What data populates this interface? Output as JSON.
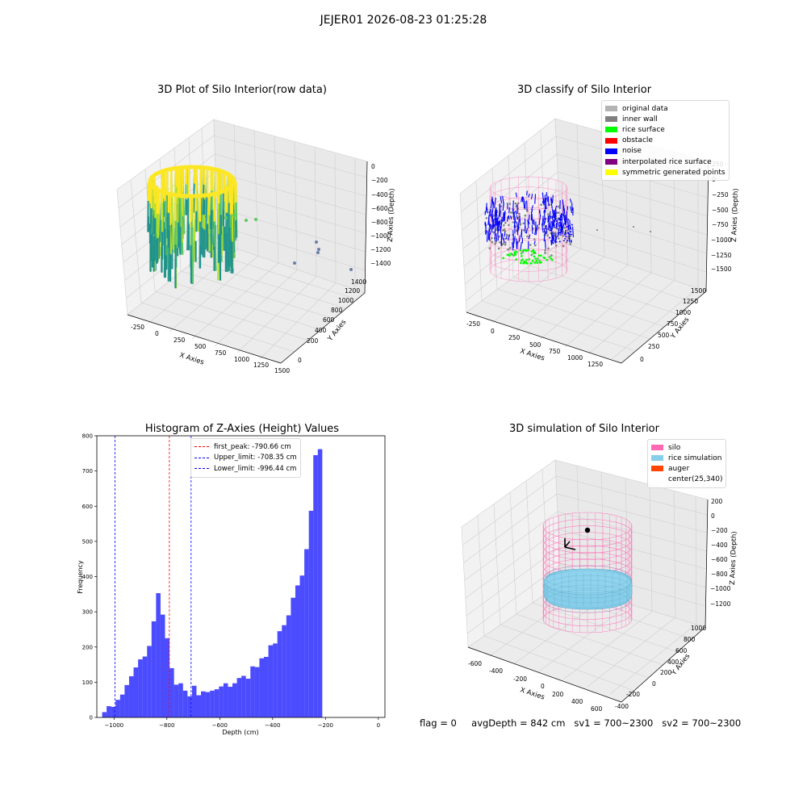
{
  "suptitle": "JEJER01 2026-08-23 01:25:28",
  "panels": {
    "raw": {
      "title": "3D Plot of Silo Interior(row data)",
      "xlabel": "X Axies",
      "ylabel": "Y Axies",
      "zlabel": "Z Axies (Depth)",
      "xticks": [
        "-250",
        "0",
        "250",
        "500",
        "750",
        "1000",
        "1250",
        "1500"
      ],
      "yticks": [
        "0",
        "200",
        "400",
        "600",
        "800",
        "1000",
        "1200",
        "1400"
      ],
      "zticks": [
        "0",
        "−200",
        "−400",
        "−600",
        "−800",
        "−1000",
        "−1200",
        "−1400"
      ]
    },
    "classify": {
      "title": "3D classify of Silo Interior",
      "xlabel": "X Axies",
      "ylabel": "Y Axies",
      "zlabel": "Z Axies (Depth)",
      "xticks": [
        "-250",
        "0",
        "250",
        "500",
        "750",
        "1000",
        "1250"
      ],
      "yticks": [
        "0",
        "250",
        "500",
        "750",
        "1000",
        "1250",
        "1500"
      ],
      "zticks": [
        "250",
        "0",
        "−250",
        "−500",
        "−750",
        "−1000",
        "−1250",
        "−1500"
      ],
      "legend": [
        {
          "label": "original data",
          "color": "#b3b3b3"
        },
        {
          "label": "inner wall",
          "color": "#808080"
        },
        {
          "label": "rice surface",
          "color": "#00ff00"
        },
        {
          "label": "obstacle",
          "color": "#ff0000"
        },
        {
          "label": "noise",
          "color": "#0000ff"
        },
        {
          "label": "interpolated rice surface",
          "color": "#800080"
        },
        {
          "label": "symmetric generated points",
          "color": "#ffff00"
        }
      ]
    },
    "simulation": {
      "title": "3D simulation of Silo Interior",
      "xlabel": "X Axies",
      "ylabel": "Y Axies",
      "zlabel": "Z Axies (Depth)",
      "xticks": [
        "-600",
        "-400",
        "-200",
        "0",
        "200",
        "400",
        "600"
      ],
      "yticks": [
        "-400",
        "-200",
        "0",
        "200",
        "400",
        "600",
        "800",
        "1000"
      ],
      "zticks": [
        "200",
        "0",
        "−200",
        "−400",
        "−600",
        "−800",
        "−1000",
        "−1200"
      ],
      "legend": [
        {
          "label": "silo",
          "color": "#ff69b4"
        },
        {
          "label": "rice simulation",
          "color": "#87ceeb"
        },
        {
          "label": "auger",
          "color": "#ff4500"
        },
        {
          "label": "center(25,340)",
          "color": "#ffffff"
        }
      ]
    }
  },
  "chart_data": {
    "type": "bar",
    "title": "Histogram of Z-Axies (Height) Values",
    "xlabel": "Depth (cm)",
    "ylabel": "Frequency",
    "xlim": [
      -1065,
      25
    ],
    "ylim": [
      0,
      800
    ],
    "xticks": [
      -1000,
      -800,
      -600,
      -400,
      -200,
      0
    ],
    "xtick_labels": [
      "−1000",
      "−800",
      "−600",
      "−400",
      "−200",
      "0"
    ],
    "yticks": [
      0,
      100,
      200,
      300,
      400,
      500,
      600,
      700,
      800
    ],
    "bar_color": "#0000ff",
    "bin_start": -1045,
    "bin_width": 17,
    "values": [
      15,
      32,
      30,
      50,
      65,
      92,
      117,
      142,
      165,
      173,
      203,
      273,
      353,
      292,
      225,
      140,
      93,
      97,
      76,
      60,
      90,
      63,
      74,
      72,
      76,
      80,
      88,
      97,
      87,
      97,
      112,
      118,
      110,
      145,
      143,
      168,
      172,
      205,
      210,
      245,
      262,
      290,
      340,
      375,
      403,
      478,
      587,
      745,
      762
    ],
    "lines": [
      {
        "label": "first_peak: -790.66 cm",
        "x": -790.66,
        "color": "#ff0000"
      },
      {
        "label": "Upper_limit: -708.35 cm",
        "x": -708.35,
        "color": "#0000ff"
      },
      {
        "label": "Lower_limit: -996.44 cm",
        "x": -996.44,
        "color": "#0000ff"
      }
    ],
    "legend_position": "top-center"
  },
  "footer": {
    "flag": "flag = 0",
    "avg": "avgDepth = 842 cm",
    "sv1": "sv1 = 700~2300",
    "sv2": "sv2 = 700~2300"
  }
}
